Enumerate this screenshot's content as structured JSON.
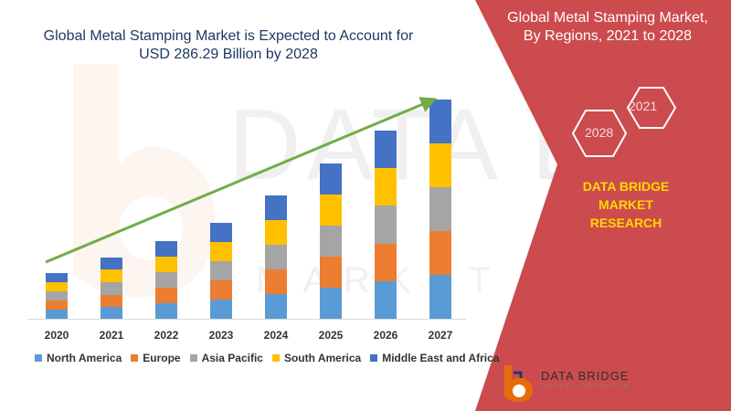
{
  "chart_title": {
    "line1": "Global Metal Stamping Market is Expected to Account for",
    "line2": "USD 286.29 Billion by 2028"
  },
  "panel": {
    "title_line1": "Global Metal Stamping Market,",
    "title_line2": "By Regions, 2021 to 2028",
    "hex_year_front": "2028",
    "hex_year_back": "2021",
    "company_line1": "DATA BRIDGE MARKET",
    "company_line2": "RESEARCH",
    "panel_color": "#cc4b4e",
    "company_color": "#ffd700"
  },
  "watermark": {
    "text": "DATA BRIDGE",
    "sub": "MARKET RESEARCH"
  },
  "logo": {
    "name": "DATA BRIDGE",
    "sub": "MARKET RESEARCH"
  },
  "arrow_color": "#70ad47",
  "chart_data": {
    "type": "bar",
    "stacked": true,
    "categories": [
      "2020",
      "2021",
      "2022",
      "2023",
      "2024",
      "2025",
      "2026",
      "2027"
    ],
    "ylim": [
      0,
      240
    ],
    "series": [
      {
        "name": "North America",
        "color": "#5b9bd5",
        "values": [
          10,
          13,
          17,
          21,
          27,
          34,
          41,
          48
        ]
      },
      {
        "name": "Europe",
        "color": "#ed7d31",
        "values": [
          10,
          13,
          17,
          21,
          27,
          34,
          41,
          48
        ]
      },
      {
        "name": "Asia Pacific",
        "color": "#a5a5a5",
        "values": [
          10,
          14,
          17,
          21,
          27,
          34,
          42,
          48
        ]
      },
      {
        "name": "South America",
        "color": "#ffc000",
        "values": [
          10,
          14,
          17,
          21,
          27,
          34,
          41,
          48
        ]
      },
      {
        "name": "Middle East and Africa",
        "color": "#4472c4",
        "values": [
          10,
          13,
          17,
          21,
          27,
          34,
          41,
          48
        ]
      }
    ],
    "legend_position": "bottom",
    "grid": false
  }
}
